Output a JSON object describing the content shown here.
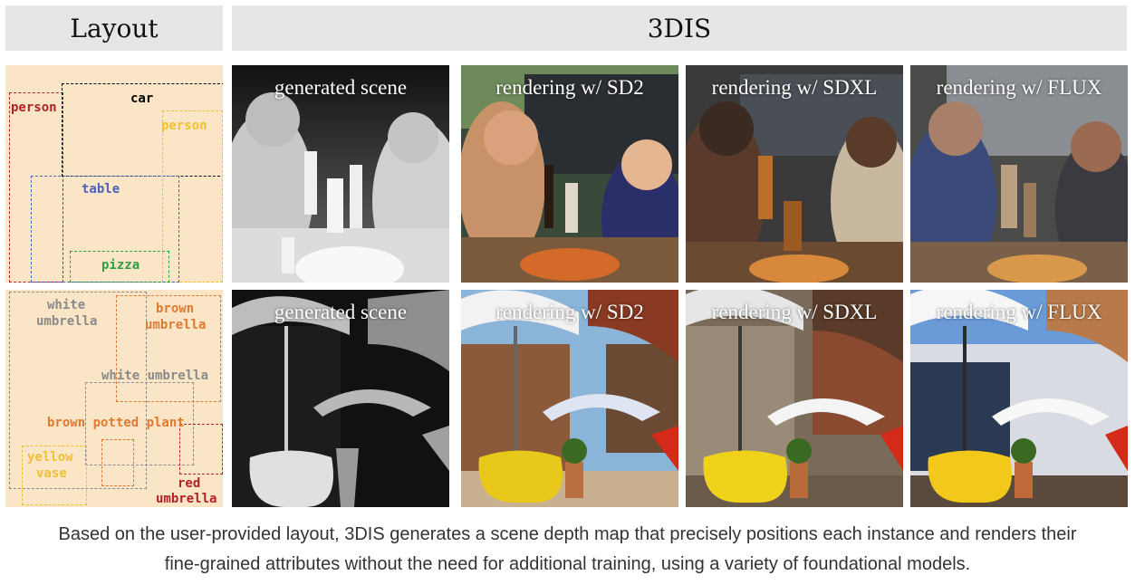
{
  "headers": {
    "layout": "Layout",
    "method": "3DIS"
  },
  "tile_titles": {
    "depth": "generated scene",
    "sd2": "rendering w/ SD2",
    "sdxl": "rendering w/ SDXL",
    "flux": "rendering w/ FLUX"
  },
  "layout1": {
    "labels": {
      "person_left": "person",
      "car": "car",
      "person_right": "person",
      "table": "table",
      "pizza": "pizza"
    },
    "colors": {
      "person_left": "#b22222",
      "car": "#000000",
      "person_right": "#f0c030",
      "table": "#4a62b8",
      "pizza": "#2ea043"
    }
  },
  "layout2": {
    "labels": {
      "white_umbrella_1": "white",
      "white_umbrella_2": "umbrella",
      "brown_umbrella_1": "brown",
      "brown_umbrella_2": "umbrella",
      "white_umbrella_mid": "white umbrella",
      "brown_potted_plant": "brown potted plant",
      "yellow_vase_1": "yellow",
      "yellow_vase_2": "vase",
      "red_umbrella_1": "red",
      "red_umbrella_2": "umbrella"
    },
    "colors": {
      "white": "#8a8a8a",
      "brown": "#e07a30",
      "yellow": "#f0c030",
      "red": "#b22222"
    }
  },
  "caption": {
    "line1": "Based on the user-provided layout, 3DIS generates a scene depth map that precisely positions each instance and renders their",
    "line2": "fine-grained attributes without the need for additional training, using a variety of foundational models."
  }
}
